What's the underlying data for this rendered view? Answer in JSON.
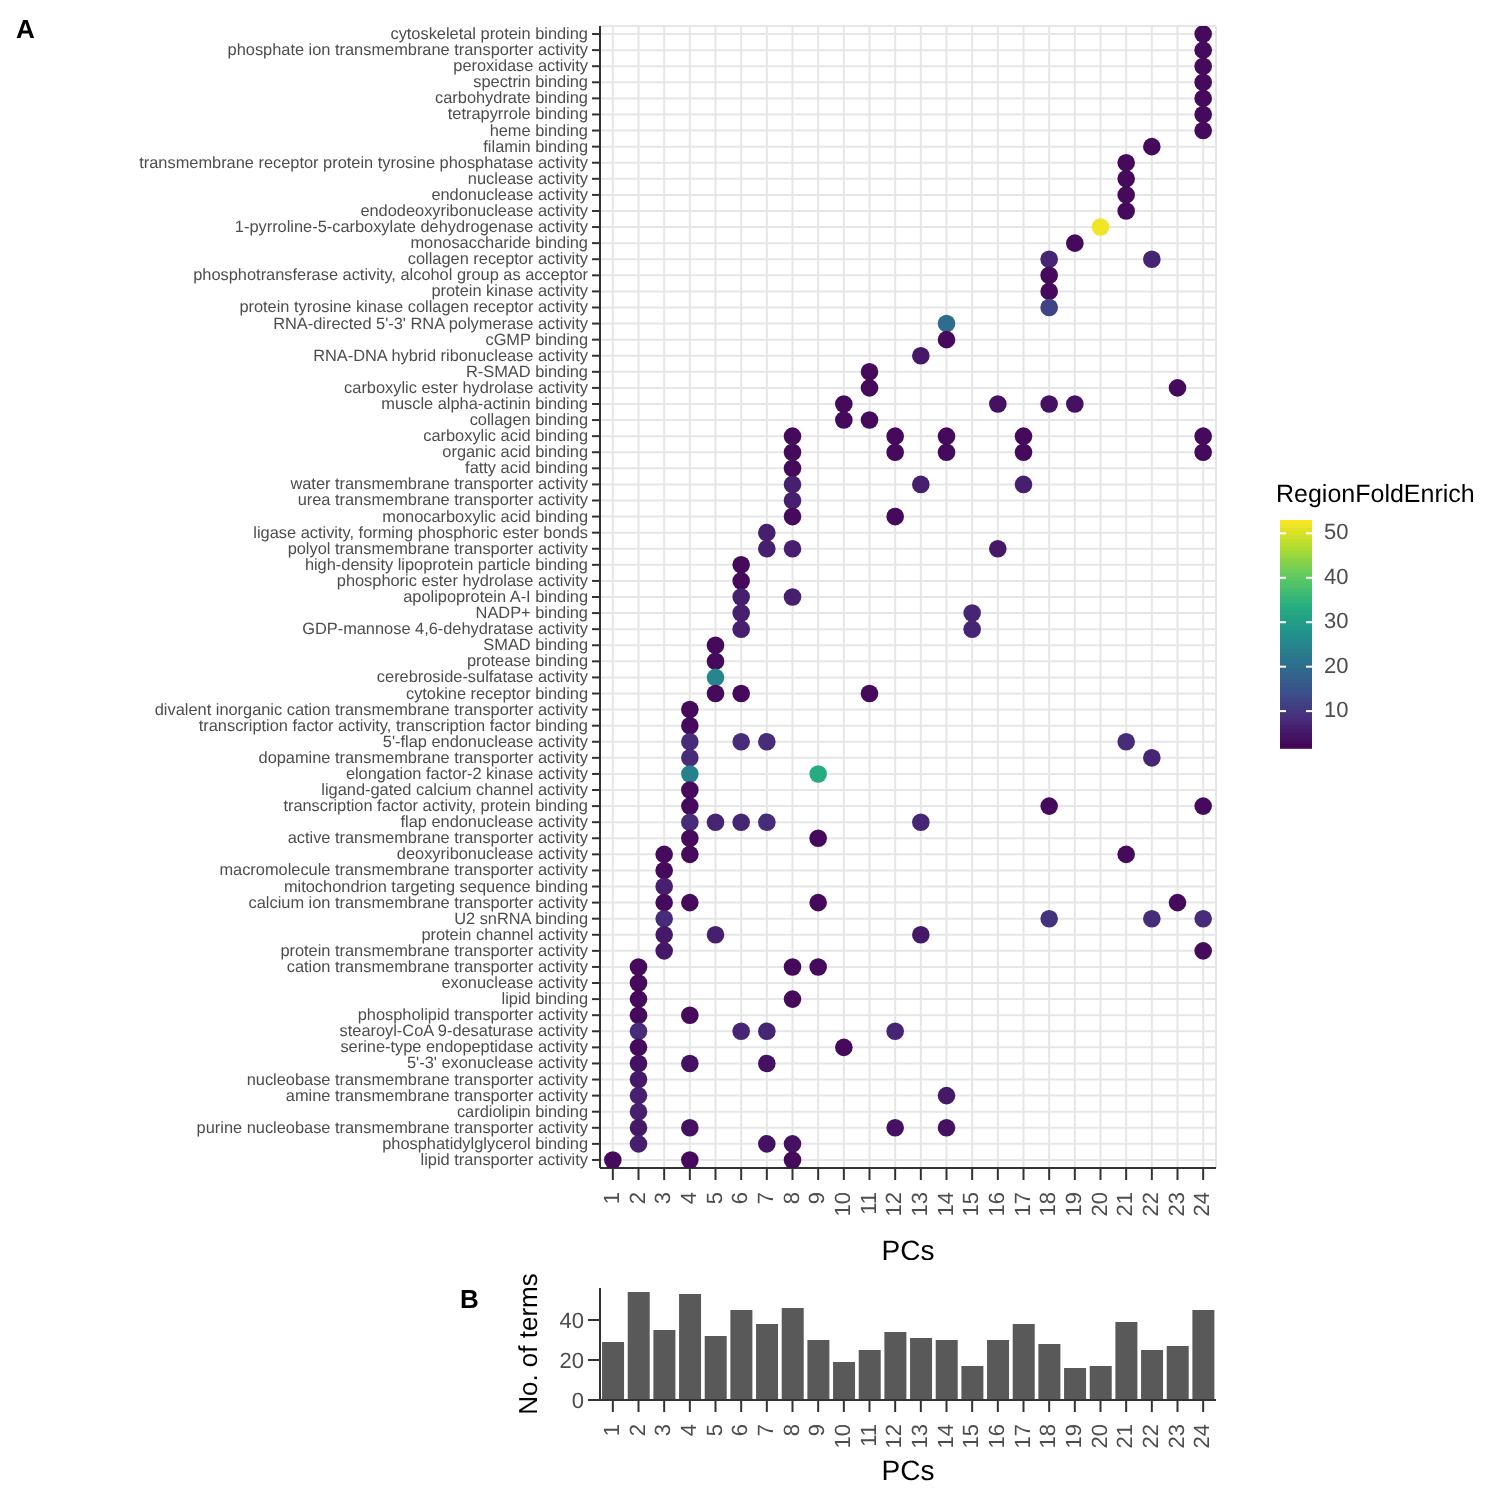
{
  "chart_data": [
    {
      "type": "heatmap",
      "title": "A",
      "xlabel": "PCs",
      "legend_title": "RegionFoldEnrich",
      "grid": true,
      "categories": [
        "1",
        "2",
        "3",
        "4",
        "5",
        "6",
        "7",
        "8",
        "9",
        "10",
        "11",
        "12",
        "13",
        "14",
        "15",
        "16",
        "17",
        "18",
        "19",
        "20",
        "21",
        "22",
        "23",
        "24"
      ],
      "y_categories": [
        "cytoskeletal protein binding",
        "phosphate ion transmembrane transporter activity",
        "peroxidase activity",
        "spectrin binding",
        "carbohydrate binding",
        "tetrapyrrole binding",
        "heme binding",
        "filamin binding",
        "transmembrane receptor protein tyrosine phosphatase activity",
        "nuclease activity",
        "endonuclease activity",
        "endodeoxyribonuclease activity",
        "1-pyrroline-5-carboxylate dehydrogenase activity",
        "monosaccharide binding",
        "collagen receptor activity",
        "phosphotransferase activity, alcohol group as acceptor",
        "protein kinase activity",
        "protein tyrosine kinase collagen receptor activity",
        "RNA-directed 5'-3' RNA polymerase activity",
        "cGMP binding",
        "RNA-DNA hybrid ribonuclease activity",
        "R-SMAD binding",
        "carboxylic ester hydrolase activity",
        "muscle alpha-actinin binding",
        "collagen binding",
        "carboxylic acid binding",
        "organic acid binding",
        "fatty acid binding",
        "water transmembrane transporter activity",
        "urea transmembrane transporter activity",
        "monocarboxylic acid binding",
        "ligase activity, forming phosphoric ester bonds",
        "polyol transmembrane transporter activity",
        "high-density lipoprotein particle binding",
        "phosphoric ester hydrolase activity",
        "apolipoprotein A-I binding",
        "NADP+ binding",
        "GDP-mannose 4,6-dehydratase activity",
        "SMAD binding",
        "protease binding",
        "cerebroside-sulfatase activity",
        "cytokine receptor binding",
        "divalent inorganic cation transmembrane transporter activity",
        "transcription factor activity, transcription factor binding",
        "5'-flap endonuclease activity",
        "dopamine transmembrane transporter activity",
        "elongation factor-2 kinase activity",
        "ligand-gated calcium channel activity",
        "transcription factor activity, protein binding",
        "flap endonuclease activity",
        "active transmembrane transporter activity",
        "deoxyribonuclease activity",
        "macromolecule transmembrane transporter activity",
        "mitochondrion targeting sequence binding",
        "calcium ion transmembrane transporter activity",
        "U2 snRNA binding",
        "protein channel activity",
        "protein transmembrane transporter activity",
        "cation transmembrane transporter activity",
        "exonuclease activity",
        "lipid binding",
        "phospholipid transporter activity",
        "stearoyl-CoA 9-desaturase activity",
        "serine-type endopeptidase activity",
        "5'-3' exonuclease activity",
        "nucleobase transmembrane transporter activity",
        "amine transmembrane transporter activity",
        "cardiolipin binding",
        "purine nucleobase transmembrane transporter activity",
        "phosphatidylglycerol binding",
        "lipid transporter activity"
      ],
      "clim": [
        1.7,
        53
      ],
      "cticks": [
        10,
        20,
        30,
        40,
        50
      ],
      "cells": [
        [
          null,
          null,
          null,
          null,
          null,
          null,
          null,
          null,
          null,
          null,
          null,
          null,
          null,
          null,
          null,
          null,
          null,
          null,
          null,
          null,
          null,
          null,
          null,
          3
        ],
        [
          null,
          null,
          null,
          null,
          null,
          null,
          null,
          null,
          null,
          null,
          null,
          null,
          null,
          null,
          null,
          null,
          null,
          null,
          null,
          null,
          null,
          null,
          null,
          3
        ],
        [
          null,
          null,
          null,
          null,
          null,
          null,
          null,
          null,
          null,
          null,
          null,
          null,
          null,
          null,
          null,
          null,
          null,
          null,
          null,
          null,
          null,
          null,
          null,
          3
        ],
        [
          null,
          null,
          null,
          null,
          null,
          null,
          null,
          null,
          null,
          null,
          null,
          null,
          null,
          null,
          null,
          null,
          null,
          null,
          null,
          null,
          null,
          null,
          null,
          3
        ],
        [
          null,
          null,
          null,
          null,
          null,
          null,
          null,
          null,
          null,
          null,
          null,
          null,
          null,
          null,
          null,
          null,
          null,
          null,
          null,
          null,
          null,
          null,
          null,
          3
        ],
        [
          null,
          null,
          null,
          null,
          null,
          null,
          null,
          null,
          null,
          null,
          null,
          null,
          null,
          null,
          null,
          null,
          null,
          null,
          null,
          null,
          null,
          null,
          null,
          3
        ],
        [
          null,
          null,
          null,
          null,
          null,
          null,
          null,
          null,
          null,
          null,
          null,
          null,
          null,
          null,
          null,
          null,
          null,
          null,
          null,
          null,
          null,
          null,
          null,
          3
        ],
        [
          null,
          null,
          null,
          null,
          null,
          null,
          null,
          null,
          null,
          null,
          null,
          null,
          null,
          null,
          null,
          null,
          null,
          null,
          null,
          null,
          null,
          3,
          null,
          null
        ],
        [
          null,
          null,
          null,
          null,
          null,
          null,
          null,
          null,
          null,
          null,
          null,
          null,
          null,
          null,
          null,
          null,
          null,
          null,
          null,
          null,
          3,
          null,
          null,
          null
        ],
        [
          null,
          null,
          null,
          null,
          null,
          null,
          null,
          null,
          null,
          null,
          null,
          null,
          null,
          null,
          null,
          null,
          null,
          null,
          null,
          null,
          3,
          null,
          null,
          null
        ],
        [
          null,
          null,
          null,
          null,
          null,
          null,
          null,
          null,
          null,
          null,
          null,
          null,
          null,
          null,
          null,
          null,
          null,
          null,
          null,
          null,
          3,
          null,
          null,
          null
        ],
        [
          null,
          null,
          null,
          null,
          null,
          null,
          null,
          null,
          null,
          null,
          null,
          null,
          null,
          null,
          null,
          null,
          null,
          null,
          null,
          null,
          3,
          null,
          null,
          null
        ],
        [
          null,
          null,
          null,
          null,
          null,
          null,
          null,
          null,
          null,
          null,
          null,
          null,
          null,
          null,
          null,
          null,
          null,
          null,
          null,
          52,
          null,
          null,
          null,
          null
        ],
        [
          null,
          null,
          null,
          null,
          null,
          null,
          null,
          null,
          null,
          null,
          null,
          null,
          null,
          null,
          null,
          null,
          null,
          null,
          3,
          null,
          null,
          null,
          null,
          null
        ],
        [
          null,
          null,
          null,
          null,
          null,
          null,
          null,
          null,
          null,
          null,
          null,
          null,
          null,
          null,
          null,
          null,
          null,
          7,
          null,
          null,
          null,
          7,
          null,
          null
        ],
        [
          null,
          null,
          null,
          null,
          null,
          null,
          null,
          null,
          null,
          null,
          null,
          null,
          null,
          null,
          null,
          null,
          null,
          3,
          null,
          null,
          null,
          null,
          null,
          null
        ],
        [
          null,
          null,
          null,
          null,
          null,
          null,
          null,
          null,
          null,
          null,
          null,
          null,
          null,
          null,
          null,
          null,
          null,
          3,
          null,
          null,
          null,
          null,
          null,
          null
        ],
        [
          null,
          null,
          null,
          null,
          null,
          null,
          null,
          null,
          null,
          null,
          null,
          null,
          null,
          null,
          null,
          null,
          null,
          12,
          null,
          null,
          null,
          null,
          null,
          null
        ],
        [
          null,
          null,
          null,
          null,
          null,
          null,
          null,
          null,
          null,
          null,
          null,
          null,
          null,
          20,
          null,
          null,
          null,
          null,
          null,
          null,
          null,
          null,
          null,
          null
        ],
        [
          null,
          null,
          null,
          null,
          null,
          null,
          null,
          null,
          null,
          null,
          null,
          null,
          null,
          3,
          null,
          null,
          null,
          null,
          null,
          null,
          null,
          null,
          null,
          null
        ],
        [
          null,
          null,
          null,
          null,
          null,
          null,
          null,
          null,
          null,
          null,
          null,
          null,
          5,
          null,
          null,
          null,
          null,
          null,
          null,
          null,
          null,
          null,
          null,
          null
        ],
        [
          null,
          null,
          null,
          null,
          null,
          null,
          null,
          null,
          null,
          null,
          3,
          null,
          null,
          null,
          null,
          null,
          null,
          null,
          null,
          null,
          null,
          null,
          null,
          null
        ],
        [
          null,
          null,
          null,
          null,
          null,
          null,
          null,
          null,
          null,
          null,
          3,
          null,
          null,
          null,
          null,
          null,
          null,
          null,
          null,
          null,
          null,
          null,
          3,
          null
        ],
        [
          null,
          null,
          null,
          null,
          null,
          null,
          null,
          null,
          null,
          3,
          null,
          null,
          null,
          null,
          null,
          4,
          null,
          4,
          4,
          null,
          null,
          null,
          null,
          null
        ],
        [
          null,
          null,
          null,
          null,
          null,
          null,
          null,
          null,
          null,
          3,
          3,
          null,
          null,
          null,
          null,
          null,
          null,
          null,
          null,
          null,
          null,
          null,
          null,
          null
        ],
        [
          null,
          null,
          null,
          null,
          null,
          null,
          null,
          3,
          null,
          null,
          null,
          3,
          null,
          3,
          null,
          null,
          3,
          null,
          null,
          null,
          null,
          null,
          null,
          3
        ],
        [
          null,
          null,
          null,
          null,
          null,
          null,
          null,
          3,
          null,
          null,
          null,
          3,
          null,
          3,
          null,
          null,
          3,
          null,
          null,
          null,
          null,
          null,
          null,
          3
        ],
        [
          null,
          null,
          null,
          null,
          null,
          null,
          null,
          3,
          null,
          null,
          null,
          null,
          null,
          null,
          null,
          null,
          null,
          null,
          null,
          null,
          null,
          null,
          null,
          null
        ],
        [
          null,
          null,
          null,
          null,
          null,
          null,
          null,
          6,
          null,
          null,
          null,
          null,
          6,
          null,
          null,
          null,
          6,
          null,
          null,
          null,
          null,
          null,
          null,
          null
        ],
        [
          null,
          null,
          null,
          null,
          null,
          null,
          null,
          6,
          null,
          null,
          null,
          null,
          null,
          null,
          null,
          null,
          null,
          null,
          null,
          null,
          null,
          null,
          null,
          null
        ],
        [
          null,
          null,
          null,
          null,
          null,
          null,
          null,
          3,
          null,
          null,
          null,
          3,
          null,
          null,
          null,
          null,
          null,
          null,
          null,
          null,
          null,
          null,
          null,
          null
        ],
        [
          null,
          null,
          null,
          null,
          null,
          null,
          6,
          null,
          null,
          null,
          null,
          null,
          null,
          null,
          null,
          null,
          null,
          null,
          null,
          null,
          null,
          null,
          null,
          null
        ],
        [
          null,
          null,
          null,
          null,
          null,
          null,
          6,
          6,
          null,
          null,
          null,
          null,
          null,
          null,
          null,
          5,
          null,
          null,
          null,
          null,
          null,
          null,
          null,
          null
        ],
        [
          null,
          null,
          null,
          null,
          null,
          3,
          null,
          null,
          null,
          null,
          null,
          null,
          null,
          null,
          null,
          null,
          null,
          null,
          null,
          null,
          null,
          null,
          null,
          null
        ],
        [
          null,
          null,
          null,
          null,
          null,
          3,
          null,
          null,
          null,
          null,
          null,
          null,
          null,
          null,
          null,
          null,
          null,
          null,
          null,
          null,
          null,
          null,
          null,
          null
        ],
        [
          null,
          null,
          null,
          null,
          null,
          6,
          null,
          6,
          null,
          null,
          null,
          null,
          null,
          null,
          null,
          null,
          null,
          null,
          null,
          null,
          null,
          null,
          null,
          null
        ],
        [
          null,
          null,
          null,
          null,
          null,
          6,
          null,
          null,
          null,
          null,
          null,
          null,
          null,
          null,
          7,
          null,
          null,
          null,
          null,
          null,
          null,
          null,
          null,
          null
        ],
        [
          null,
          null,
          null,
          null,
          null,
          6,
          null,
          null,
          null,
          null,
          null,
          null,
          null,
          null,
          7,
          null,
          null,
          null,
          null,
          null,
          null,
          null,
          null,
          null
        ],
        [
          null,
          null,
          null,
          null,
          3,
          null,
          null,
          null,
          null,
          null,
          null,
          null,
          null,
          null,
          null,
          null,
          null,
          null,
          null,
          null,
          null,
          null,
          null,
          null
        ],
        [
          null,
          null,
          null,
          null,
          3,
          null,
          null,
          null,
          null,
          null,
          null,
          null,
          null,
          null,
          null,
          null,
          null,
          null,
          null,
          null,
          null,
          null,
          null,
          null
        ],
        [
          null,
          null,
          null,
          null,
          25,
          null,
          null,
          null,
          null,
          null,
          null,
          null,
          null,
          null,
          null,
          null,
          null,
          null,
          null,
          null,
          null,
          null,
          null,
          null
        ],
        [
          null,
          null,
          null,
          null,
          3,
          3,
          null,
          null,
          null,
          null,
          3,
          null,
          null,
          null,
          null,
          null,
          null,
          null,
          null,
          null,
          null,
          null,
          null,
          null
        ],
        [
          null,
          null,
          null,
          3,
          null,
          null,
          null,
          null,
          null,
          null,
          null,
          null,
          null,
          null,
          null,
          null,
          null,
          null,
          null,
          null,
          null,
          null,
          null,
          null
        ],
        [
          null,
          null,
          null,
          3,
          null,
          null,
          null,
          null,
          null,
          null,
          null,
          null,
          null,
          null,
          null,
          null,
          null,
          null,
          null,
          null,
          null,
          null,
          null,
          null
        ],
        [
          null,
          null,
          null,
          8,
          null,
          8,
          8,
          null,
          null,
          null,
          null,
          null,
          null,
          null,
          null,
          null,
          null,
          null,
          null,
          null,
          8,
          null,
          null,
          null
        ],
        [
          null,
          null,
          null,
          8,
          null,
          null,
          null,
          null,
          null,
          null,
          null,
          null,
          null,
          null,
          null,
          null,
          null,
          null,
          null,
          null,
          null,
          7,
          null,
          null
        ],
        [
          null,
          null,
          null,
          24,
          null,
          null,
          null,
          null,
          33,
          null,
          null,
          null,
          null,
          null,
          null,
          null,
          null,
          null,
          null,
          null,
          null,
          null,
          null,
          null
        ],
        [
          null,
          null,
          null,
          3,
          null,
          null,
          null,
          null,
          null,
          null,
          null,
          null,
          null,
          null,
          null,
          null,
          null,
          null,
          null,
          null,
          null,
          null,
          null,
          null
        ],
        [
          null,
          null,
          null,
          3,
          null,
          null,
          null,
          null,
          null,
          null,
          null,
          null,
          null,
          null,
          null,
          null,
          null,
          3,
          null,
          null,
          null,
          null,
          null,
          3
        ],
        [
          null,
          null,
          null,
          8,
          7,
          7,
          8,
          null,
          null,
          null,
          null,
          null,
          7,
          null,
          null,
          null,
          null,
          null,
          null,
          null,
          null,
          null,
          null,
          null
        ],
        [
          null,
          null,
          null,
          3,
          null,
          null,
          null,
          null,
          3,
          null,
          null,
          null,
          null,
          null,
          null,
          null,
          null,
          null,
          null,
          null,
          null,
          null,
          null,
          null
        ],
        [
          null,
          null,
          3,
          3,
          null,
          null,
          null,
          null,
          null,
          null,
          null,
          null,
          null,
          null,
          null,
          null,
          null,
          null,
          null,
          null,
          3,
          null,
          null,
          null
        ],
        [
          null,
          null,
          3,
          null,
          null,
          null,
          null,
          null,
          null,
          null,
          null,
          null,
          null,
          null,
          null,
          null,
          null,
          null,
          null,
          null,
          null,
          null,
          null,
          null
        ],
        [
          null,
          null,
          6,
          null,
          null,
          null,
          null,
          null,
          null,
          null,
          null,
          null,
          null,
          null,
          null,
          null,
          null,
          null,
          null,
          null,
          null,
          null,
          null,
          null
        ],
        [
          null,
          null,
          3,
          3,
          null,
          null,
          null,
          null,
          3,
          null,
          null,
          null,
          null,
          null,
          null,
          null,
          null,
          null,
          null,
          null,
          null,
          null,
          3,
          null
        ],
        [
          null,
          null,
          8,
          null,
          null,
          null,
          null,
          null,
          null,
          null,
          null,
          null,
          null,
          null,
          null,
          null,
          null,
          9,
          null,
          null,
          null,
          8,
          null,
          8
        ],
        [
          null,
          null,
          5,
          null,
          6,
          null,
          null,
          null,
          null,
          null,
          null,
          null,
          5,
          null,
          null,
          null,
          null,
          null,
          null,
          null,
          null,
          null,
          null,
          null
        ],
        [
          null,
          null,
          5,
          null,
          null,
          null,
          null,
          null,
          null,
          null,
          null,
          null,
          null,
          null,
          null,
          null,
          null,
          null,
          null,
          null,
          null,
          null,
          null,
          3
        ],
        [
          null,
          3,
          null,
          null,
          null,
          null,
          null,
          3,
          3,
          null,
          null,
          null,
          null,
          null,
          null,
          null,
          null,
          null,
          null,
          null,
          null,
          null,
          null,
          null
        ],
        [
          null,
          3,
          null,
          null,
          null,
          null,
          null,
          null,
          null,
          null,
          null,
          null,
          null,
          null,
          null,
          null,
          null,
          null,
          null,
          null,
          null,
          null,
          null,
          null
        ],
        [
          null,
          3,
          null,
          null,
          null,
          null,
          null,
          3,
          null,
          null,
          null,
          null,
          null,
          null,
          null,
          null,
          null,
          null,
          null,
          null,
          null,
          null,
          null,
          null
        ],
        [
          null,
          3,
          null,
          3,
          null,
          null,
          null,
          null,
          null,
          null,
          null,
          null,
          null,
          null,
          null,
          null,
          null,
          null,
          null,
          null,
          null,
          null,
          null,
          null
        ],
        [
          null,
          8,
          null,
          null,
          null,
          7,
          7,
          null,
          null,
          null,
          null,
          7,
          null,
          null,
          null,
          null,
          null,
          null,
          null,
          null,
          null,
          null,
          null,
          null
        ],
        [
          null,
          3,
          null,
          null,
          null,
          null,
          null,
          null,
          null,
          3,
          null,
          null,
          null,
          null,
          null,
          null,
          null,
          null,
          null,
          null,
          null,
          null,
          null,
          null
        ],
        [
          null,
          4,
          null,
          4,
          null,
          null,
          4,
          null,
          null,
          null,
          null,
          null,
          null,
          null,
          null,
          null,
          null,
          null,
          null,
          null,
          null,
          null,
          null,
          null
        ],
        [
          null,
          5,
          null,
          null,
          null,
          null,
          null,
          null,
          null,
          null,
          null,
          null,
          null,
          null,
          null,
          null,
          null,
          null,
          null,
          null,
          null,
          null,
          null,
          null
        ],
        [
          null,
          6,
          null,
          null,
          null,
          null,
          null,
          null,
          null,
          null,
          null,
          null,
          null,
          5,
          null,
          null,
          null,
          null,
          null,
          null,
          null,
          null,
          null,
          null
        ],
        [
          null,
          6,
          null,
          null,
          null,
          null,
          null,
          null,
          null,
          null,
          null,
          null,
          null,
          null,
          null,
          null,
          null,
          null,
          null,
          null,
          null,
          null,
          null,
          null
        ],
        [
          null,
          5,
          null,
          4,
          null,
          null,
          null,
          null,
          null,
          null,
          null,
          4,
          null,
          4,
          null,
          null,
          null,
          null,
          null,
          null,
          null,
          null,
          null,
          null
        ],
        [
          null,
          6,
          null,
          null,
          null,
          null,
          4,
          4,
          null,
          null,
          null,
          null,
          null,
          null,
          null,
          null,
          null,
          null,
          null,
          null,
          null,
          null,
          null,
          null
        ],
        [
          3,
          null,
          null,
          3,
          null,
          null,
          null,
          3,
          null,
          null,
          null,
          null,
          null,
          null,
          null,
          null,
          null,
          null,
          null,
          null,
          null,
          null,
          null,
          null
        ]
      ]
    },
    {
      "type": "bar",
      "title": "B",
      "xlabel": "PCs",
      "ylabel": "No. of terms",
      "color": "#595959",
      "categories": [
        "1",
        "2",
        "3",
        "4",
        "5",
        "6",
        "7",
        "8",
        "9",
        "10",
        "11",
        "12",
        "13",
        "14",
        "15",
        "16",
        "17",
        "18",
        "19",
        "20",
        "21",
        "22",
        "23",
        "24"
      ],
      "values": [
        29,
        54,
        35,
        53,
        32,
        45,
        38,
        46,
        30,
        19,
        25,
        34,
        31,
        30,
        17,
        30,
        38,
        28,
        16,
        17,
        39,
        25,
        27,
        45
      ],
      "ylim": [
        0,
        56
      ],
      "yticks": [
        0,
        20,
        40
      ]
    }
  ]
}
